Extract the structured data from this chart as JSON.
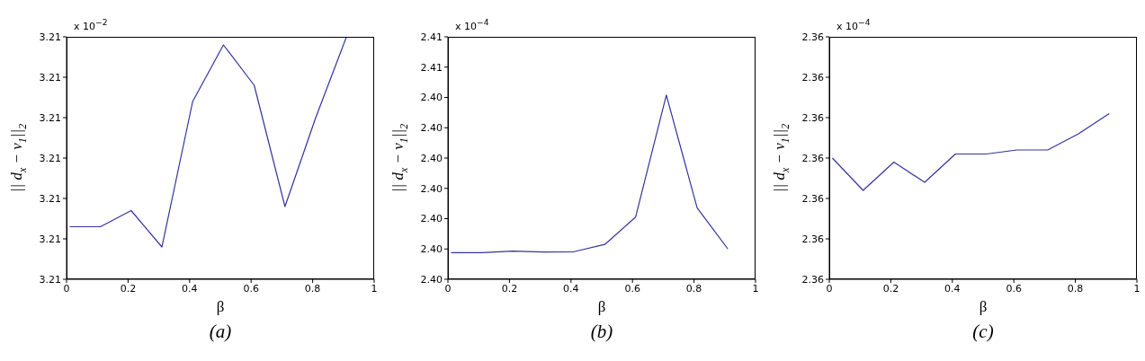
{
  "chart_data": [
    {
      "type": "line",
      "xlabel": "β",
      "ylabel": "|| d$_{x}$ − v$_{1}$||$_{2}$",
      "annotations": [
        "x 10$^{−2}$",
        "(a)"
      ],
      "x": [
        0.01,
        0.11,
        0.21,
        0.31,
        0.41,
        0.51,
        0.61,
        0.71,
        0.81,
        0.91
      ],
      "series": [
        {
          "color": "#3333a0",
          "values": [
            3.20983,
            3.20983,
            3.20987,
            3.20978,
            3.21014,
            3.21028,
            3.21018,
            3.20988,
            3.2101,
            3.2103
          ]
        }
      ],
      "xlim": [
        0,
        1
      ],
      "xticks": [
        0,
        0.2,
        0.4,
        0.6,
        0.8,
        1
      ],
      "ylim": [
        3.2097,
        3.2103
      ],
      "yticks": [
        {
          "value": 3.2097,
          "label": "3.21"
        },
        {
          "value": 3.2098,
          "label": "3.21"
        },
        {
          "value": 3.2099,
          "label": "3.21"
        },
        {
          "value": 3.21,
          "label": "3.21"
        },
        {
          "value": 3.2101,
          "label": "3.21"
        },
        {
          "value": 3.2102,
          "label": "3.21"
        },
        {
          "value": 3.2103,
          "label": "3.21"
        }
      ],
      "grid": false,
      "legend": false,
      "marker": "none",
      "line_style": "solid"
    },
    {
      "type": "line",
      "xlabel": "β",
      "ylabel": "|| d$_{x}$ − v$_{1}$||$_{2}$",
      "annotations": [
        "x 10$^{−4}$",
        "(b)"
      ],
      "x": [
        0.01,
        0.11,
        0.21,
        0.31,
        0.41,
        0.51,
        0.61,
        0.71,
        0.81,
        0.91
      ],
      "series": [
        {
          "color": "#3333a0",
          "values": [
            2.39938,
            2.39938,
            2.39943,
            2.3994,
            2.39941,
            2.39965,
            2.40055,
            2.40458,
            2.40086,
            2.3995
          ]
        }
      ],
      "xlim": [
        0,
        1
      ],
      "xticks": [
        0,
        0.2,
        0.4,
        0.6,
        0.8,
        1
      ],
      "ylim": [
        2.3985,
        2.4065
      ],
      "yticks": [
        {
          "value": 2.3985,
          "label": "2.40"
        },
        {
          "value": 2.3995,
          "label": "2.40"
        },
        {
          "value": 2.4005,
          "label": "2.40"
        },
        {
          "value": 2.4015,
          "label": "2.40"
        },
        {
          "value": 2.4025,
          "label": "2.40"
        },
        {
          "value": 2.4035,
          "label": "2.40"
        },
        {
          "value": 2.4045,
          "label": "2.40"
        },
        {
          "value": 2.4055,
          "label": "2.41"
        },
        {
          "value": 2.4065,
          "label": "2.41"
        }
      ],
      "grid": false,
      "legend": false,
      "marker": "none",
      "line_style": "solid"
    },
    {
      "type": "line",
      "xlabel": "β",
      "ylabel": "|| d$_{x}$ − v$_{1}$||$_{2}$",
      "annotations": [
        "x 10$^{−4}$",
        "(c)"
      ],
      "x": [
        0.01,
        0.11,
        0.21,
        0.31,
        0.41,
        0.51,
        0.61,
        0.71,
        0.81,
        0.91
      ],
      "series": [
        {
          "color": "#3333a0",
          "values": [
            2.36,
            2.35992,
            2.35999,
            2.35994,
            2.36001,
            2.36001,
            2.36002,
            2.36002,
            2.36006,
            2.36011
          ]
        }
      ],
      "xlim": [
        0,
        1
      ],
      "xticks": [
        0,
        0.2,
        0.4,
        0.6,
        0.8,
        1
      ],
      "ylim": [
        2.3597,
        2.3603
      ],
      "yticks": [
        {
          "value": 2.3597,
          "label": "2.36"
        },
        {
          "value": 2.3598,
          "label": "2.36"
        },
        {
          "value": 2.3599,
          "label": "2.36"
        },
        {
          "value": 2.36,
          "label": "2.36"
        },
        {
          "value": 2.3601,
          "label": "2.36"
        },
        {
          "value": 2.3602,
          "label": "2.36"
        },
        {
          "value": 2.3603,
          "label": "2.36"
        }
      ],
      "grid": false,
      "legend": false,
      "marker": "none",
      "line_style": "solid"
    }
  ]
}
